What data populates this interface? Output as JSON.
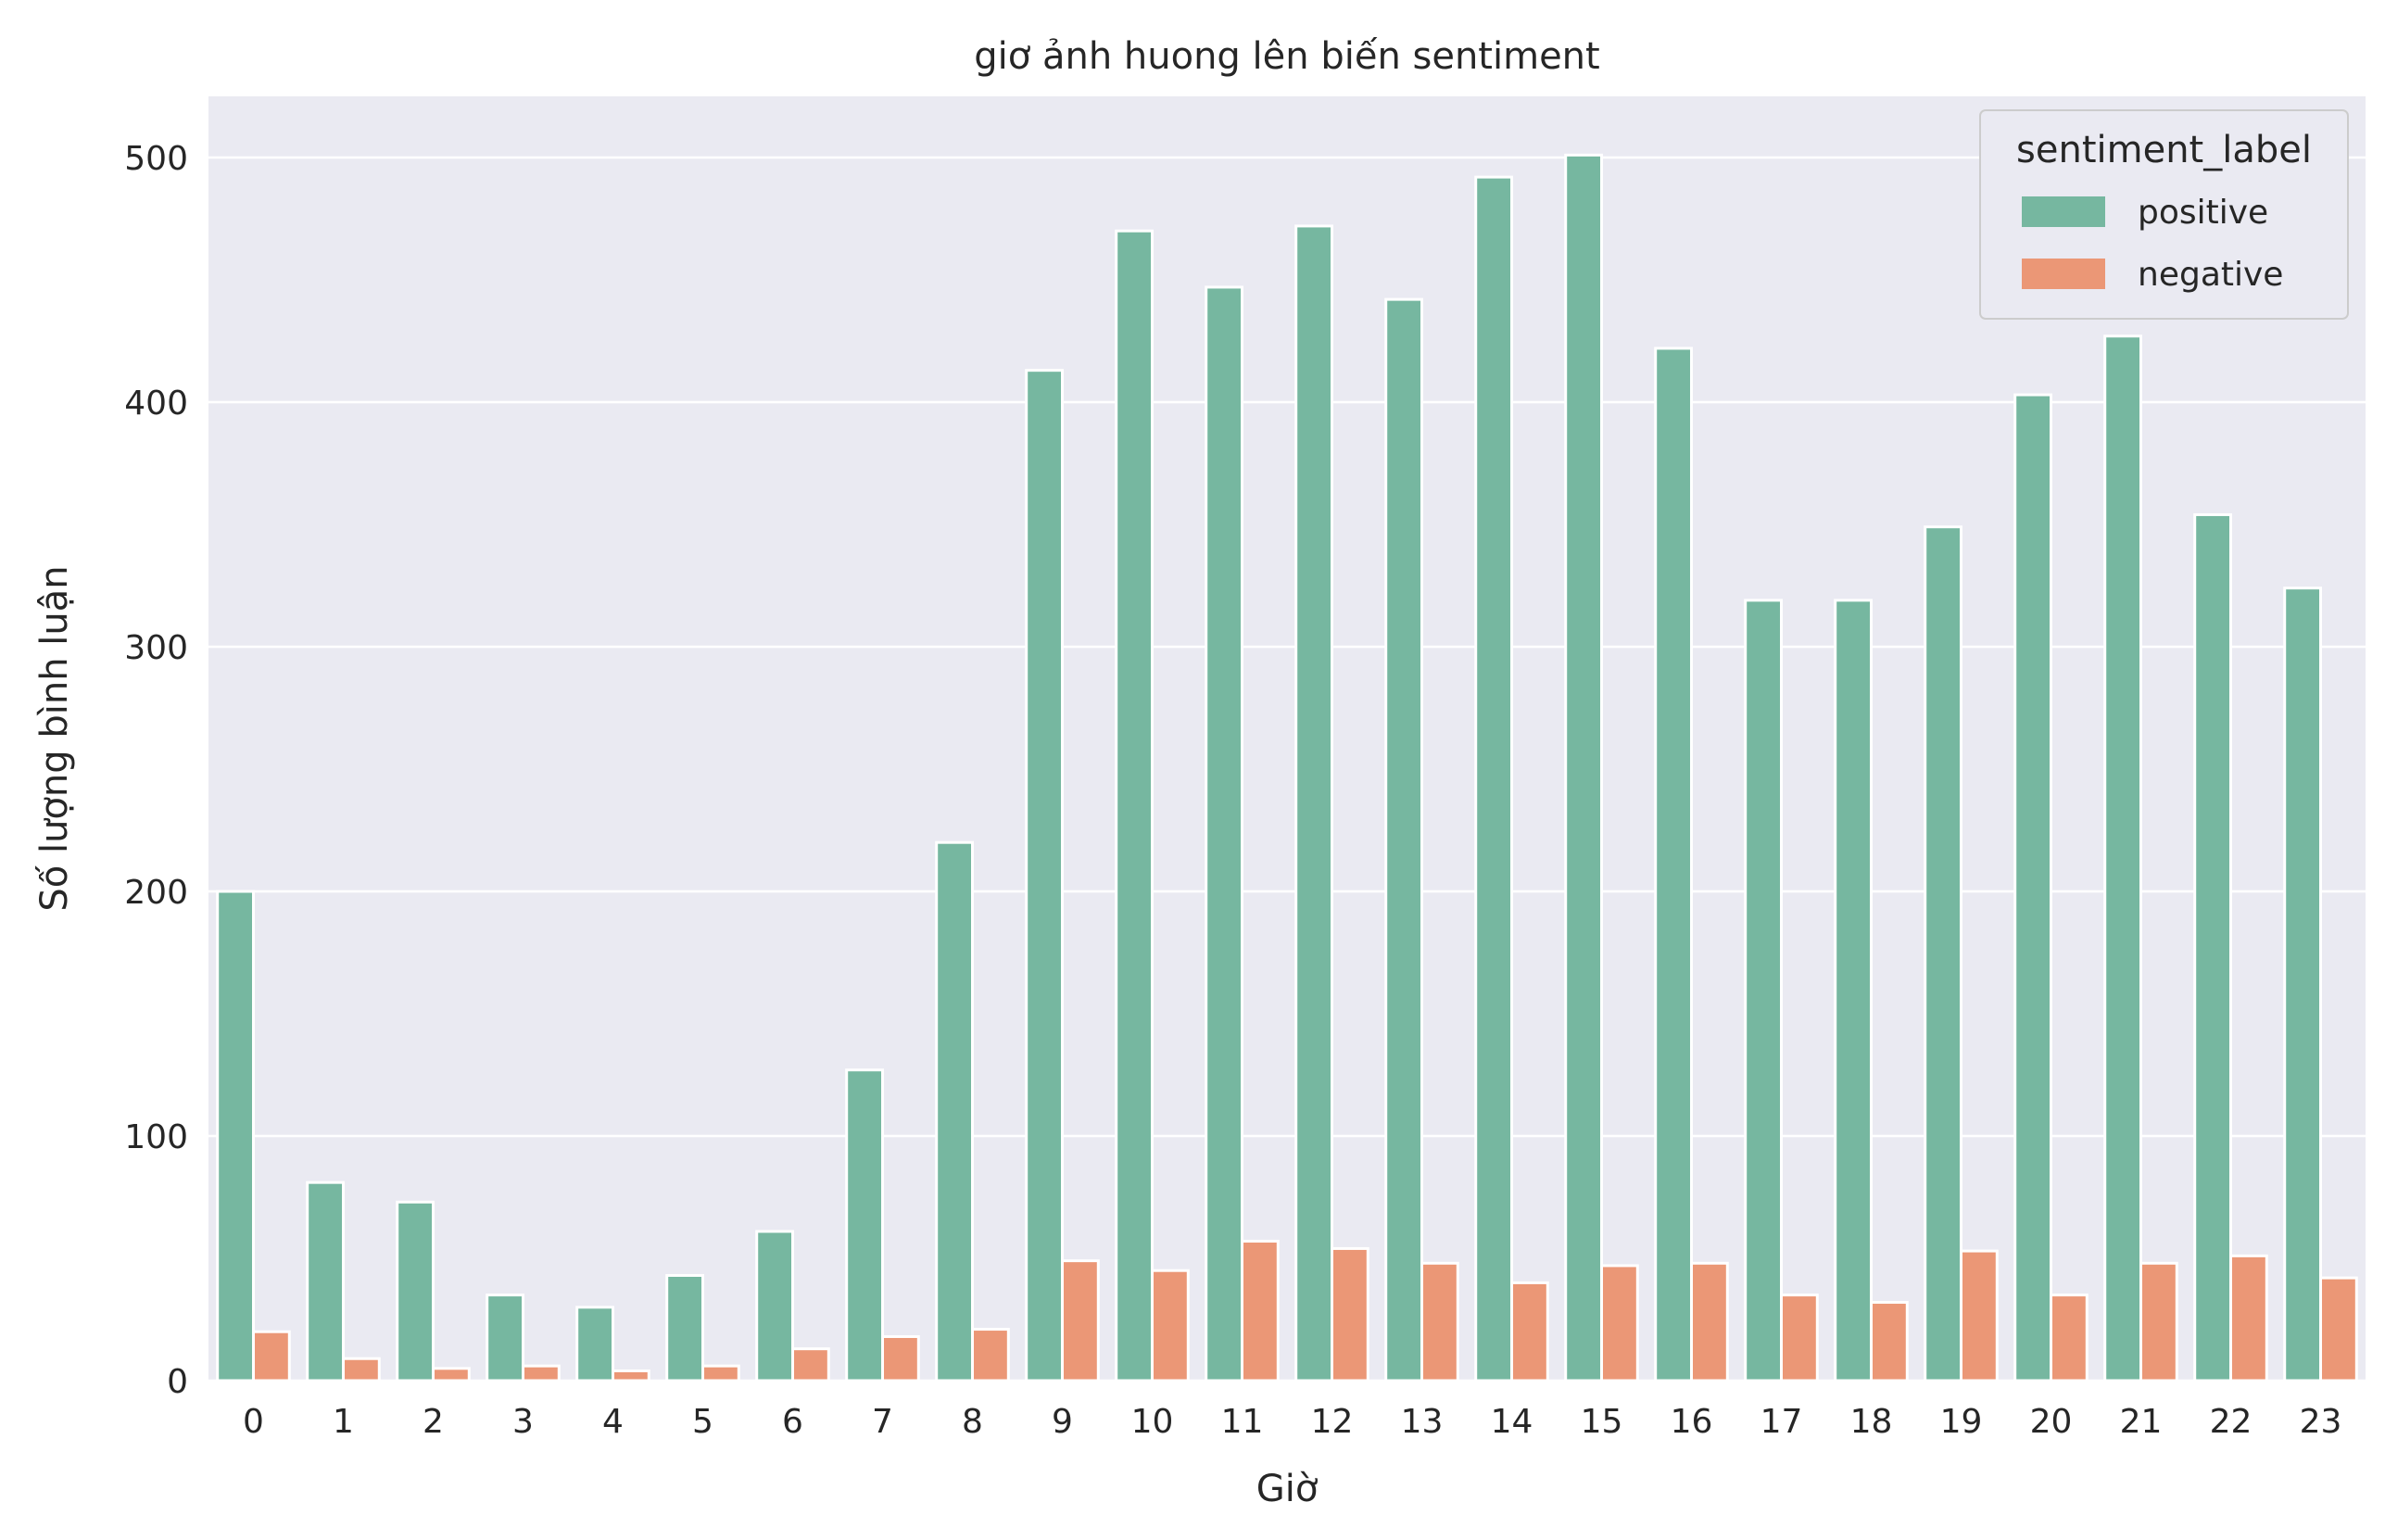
{
  "chart_data": {
    "type": "bar",
    "title": "giơ ảnh huong lên biến sentiment",
    "xlabel": "Giờ",
    "ylabel": "Số lượng bình luận",
    "categories": [
      "0",
      "1",
      "2",
      "3",
      "4",
      "5",
      "6",
      "7",
      "8",
      "9",
      "10",
      "11",
      "12",
      "13",
      "14",
      "15",
      "16",
      "17",
      "18",
      "19",
      "20",
      "21",
      "22",
      "23"
    ],
    "series": [
      {
        "name": "positive",
        "color": "#76b7a0",
        "values": [
          200,
          81,
          73,
          35,
          30,
          43,
          61,
          127,
          220,
          413,
          470,
          447,
          472,
          442,
          492,
          501,
          422,
          319,
          319,
          349,
          403,
          427,
          354,
          324
        ]
      },
      {
        "name": "negative",
        "color": "#eb9776",
        "values": [
          20,
          9,
          5,
          6,
          4,
          6,
          13,
          18,
          21,
          49,
          45,
          57,
          54,
          48,
          40,
          47,
          48,
          35,
          32,
          53,
          35,
          48,
          51,
          42
        ]
      }
    ],
    "ylim": [
      0,
      525
    ],
    "yticks": [
      0,
      100,
      200,
      300,
      400,
      500
    ],
    "grid": true,
    "background": "#eaeaf2",
    "legend": {
      "title": "sentiment_label",
      "placement": "top-right"
    }
  }
}
